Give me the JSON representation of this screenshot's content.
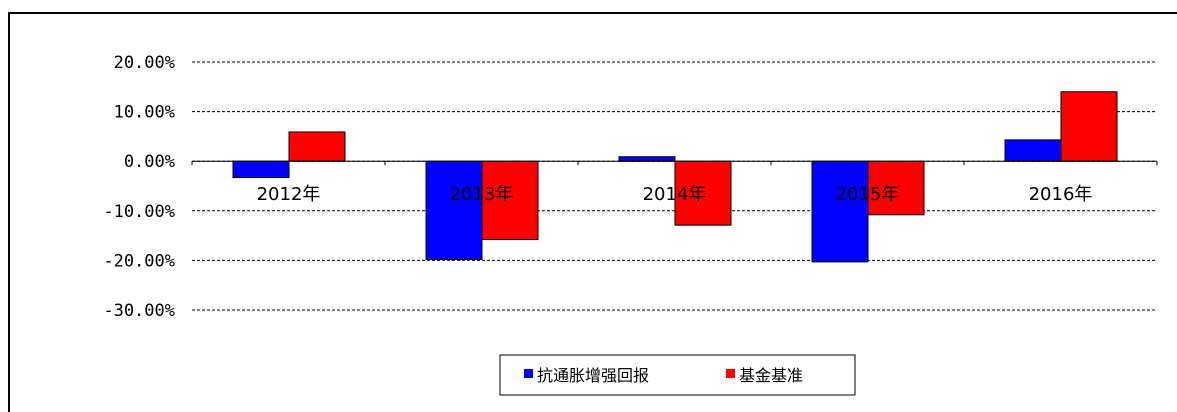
{
  "chart_data": {
    "type": "bar",
    "categories": [
      "2012年",
      "2013年",
      "2014年",
      "2015年",
      "2016年"
    ],
    "series": [
      {
        "name": "抗通胀增强回报",
        "color": "#0000ff",
        "values": [
          -3.3,
          -19.8,
          0.9,
          -20.3,
          4.3
        ]
      },
      {
        "name": "基金基准",
        "color": "#ff0000",
        "values": [
          5.9,
          -15.8,
          -12.9,
          -10.8,
          14.0
        ]
      }
    ],
    "yticks": [
      "20.00%",
      "10.00%",
      "0.00%",
      "-10.00%",
      "-20.00%",
      "-30.00%"
    ],
    "ylim": [
      -30,
      20
    ],
    "grid": true,
    "legend_position": "bottom-center",
    "title": "",
    "xlabel": "",
    "ylabel": ""
  }
}
